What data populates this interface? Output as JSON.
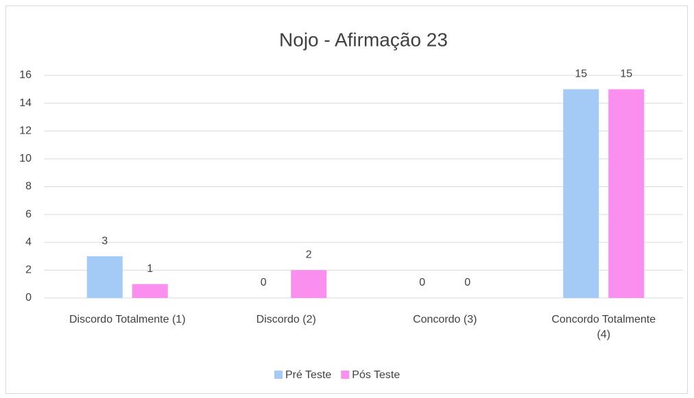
{
  "chart_data": {
    "type": "bar",
    "title": "Nojo - Afirmação 23",
    "categories": [
      "Discordo Totalmente (1)",
      "Discordo (2)",
      "Concordo (3)",
      "Concordo Totalmente (4)"
    ],
    "series": [
      {
        "name": "Pré Teste",
        "color": "#a3cbf5",
        "values": [
          3,
          0,
          0,
          15
        ]
      },
      {
        "name": "Pós Teste",
        "color": "#fb8ff0",
        "values": [
          1,
          2,
          0,
          15
        ]
      }
    ],
    "ylim": [
      0,
      16
    ],
    "yticks": [
      0,
      2,
      4,
      6,
      8,
      10,
      12,
      14,
      16
    ],
    "grid": true,
    "legend": "bottom"
  }
}
